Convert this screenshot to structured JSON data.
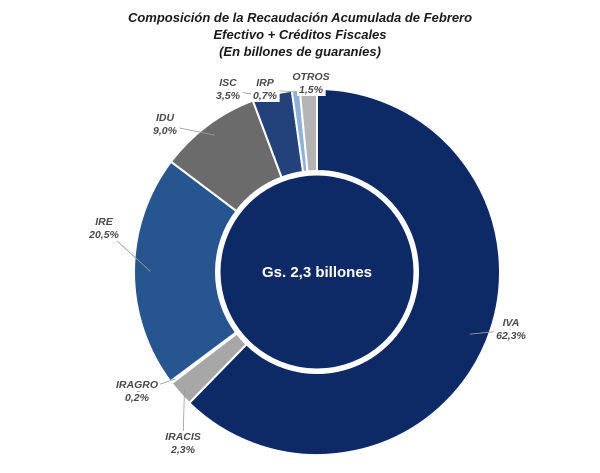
{
  "chart_data": {
    "type": "pie",
    "title": "Composición de la Recaudación Acumulada de Febrero",
    "subtitle": "Efectivo + Créditos Fiscales",
    "unit_note": "(En billones de guaraníes)",
    "center_label": "Gs. 2,3 billones",
    "donut": true,
    "slices": [
      {
        "name": "IVA",
        "value": 62.3,
        "value_label": "62,3%",
        "color": "#0e2a66"
      },
      {
        "name": "IRACIS",
        "value": 2.3,
        "value_label": "2,3%",
        "color": "#a7a7a7"
      },
      {
        "name": "IRAGRO",
        "value": 0.2,
        "value_label": "0,2%",
        "color": "#d6d6d6"
      },
      {
        "name": "IRE",
        "value": 20.5,
        "value_label": "20,5%",
        "color": "#27558f"
      },
      {
        "name": "IDU",
        "value": 9.0,
        "value_label": "9,0%",
        "color": "#6b6b6b"
      },
      {
        "name": "ISC",
        "value": 3.5,
        "value_label": "3,5%",
        "color": "#23417a"
      },
      {
        "name": "IRP",
        "value": 0.7,
        "value_label": "0,7%",
        "color": "#8fb0d8"
      },
      {
        "name": "OTROS",
        "value": 1.5,
        "value_label": "1,5%",
        "color": "#b4b4b4"
      }
    ]
  }
}
